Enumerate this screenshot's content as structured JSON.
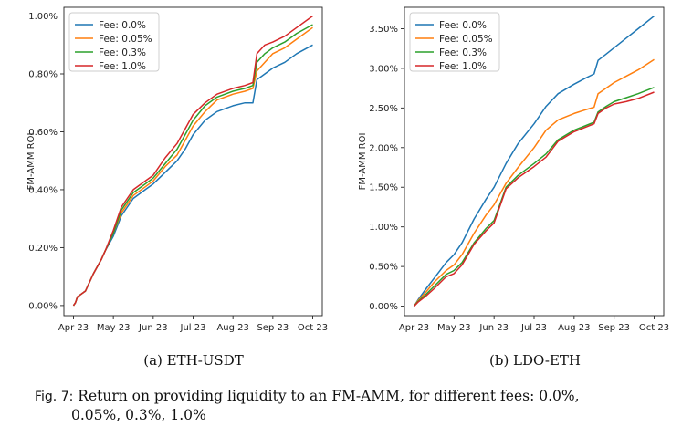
{
  "charts_meta": {
    "colors": [
      "#1f77b4",
      "#ff7f0e",
      "#2ca02c",
      "#d62728"
    ]
  },
  "chart_data": [
    {
      "type": "line",
      "caption": "(a) ETH-USDT",
      "ylabel": "FM-AMM ROI",
      "xticks": [
        "Apr 23",
        "May 23",
        "Jun 23",
        "Jul 23",
        "Aug 23",
        "Sep 23",
        "Oct 23"
      ],
      "yticks": [
        "0.00%",
        "0.20%",
        "0.40%",
        "0.60%",
        "0.80%",
        "1.00%"
      ],
      "ylim": [
        -0.00035,
        0.0103
      ],
      "xlim": [
        -0.24,
        6.24
      ],
      "legend_position": "upper left",
      "grid": false,
      "series": [
        {
          "name": "Fee: 0.0%",
          "x": [
            0,
            0.05,
            0.1,
            0.2,
            0.3,
            0.5,
            0.7,
            0.8,
            1.0,
            1.2,
            1.5,
            1.8,
            2.0,
            2.3,
            2.6,
            2.8,
            3.0,
            3.3,
            3.6,
            4.0,
            4.3,
            4.5,
            4.6,
            4.8,
            5.0,
            5.3,
            5.6,
            6.0
          ],
          "y": [
            0.0,
            0.0001,
            0.0003,
            0.0004,
            0.0005,
            0.0011,
            0.0016,
            0.0019,
            0.0024,
            0.0031,
            0.0037,
            0.004,
            0.0042,
            0.0046,
            0.005,
            0.0054,
            0.0059,
            0.0064,
            0.0067,
            0.0069,
            0.007,
            0.007,
            0.0078,
            0.008,
            0.0082,
            0.0084,
            0.0087,
            0.009
          ]
        },
        {
          "name": "Fee: 0.05%",
          "x": [
            0,
            0.05,
            0.1,
            0.2,
            0.3,
            0.5,
            0.7,
            0.8,
            1.0,
            1.2,
            1.5,
            1.8,
            2.0,
            2.3,
            2.6,
            2.8,
            3.0,
            3.3,
            3.6,
            4.0,
            4.3,
            4.5,
            4.6,
            4.8,
            5.0,
            5.3,
            5.6,
            6.0
          ],
          "y": [
            0.0,
            0.0001,
            0.0003,
            0.0004,
            0.0005,
            0.0011,
            0.0016,
            0.0019,
            0.0025,
            0.0032,
            0.0038,
            0.0041,
            0.0043,
            0.0048,
            0.0052,
            0.0057,
            0.0062,
            0.0067,
            0.0071,
            0.0073,
            0.0074,
            0.0075,
            0.0081,
            0.0084,
            0.0087,
            0.0089,
            0.0092,
            0.0096
          ]
        },
        {
          "name": "Fee: 0.3%",
          "x": [
            0,
            0.05,
            0.1,
            0.2,
            0.3,
            0.5,
            0.7,
            0.8,
            1.0,
            1.2,
            1.5,
            1.8,
            2.0,
            2.3,
            2.6,
            2.8,
            3.0,
            3.3,
            3.6,
            4.0,
            4.3,
            4.5,
            4.6,
            4.8,
            5.0,
            5.3,
            5.6,
            6.0
          ],
          "y": [
            0.0,
            0.0001,
            0.0003,
            0.0004,
            0.0005,
            0.0011,
            0.0016,
            0.0019,
            0.0025,
            0.0033,
            0.0039,
            0.0042,
            0.0044,
            0.0049,
            0.0054,
            0.0059,
            0.0064,
            0.0069,
            0.0072,
            0.0074,
            0.0075,
            0.0076,
            0.0084,
            0.0087,
            0.0089,
            0.0091,
            0.0094,
            0.0097
          ]
        },
        {
          "name": "Fee: 1.0%",
          "x": [
            0,
            0.05,
            0.1,
            0.2,
            0.3,
            0.5,
            0.7,
            0.8,
            1.0,
            1.2,
            1.5,
            1.8,
            2.0,
            2.3,
            2.6,
            2.8,
            3.0,
            3.3,
            3.6,
            4.0,
            4.3,
            4.5,
            4.6,
            4.8,
            5.0,
            5.3,
            5.6,
            6.0
          ],
          "y": [
            0.0,
            0.0001,
            0.0003,
            0.0004,
            0.0005,
            0.0011,
            0.0016,
            0.0019,
            0.0026,
            0.0034,
            0.004,
            0.0043,
            0.0045,
            0.0051,
            0.0056,
            0.0061,
            0.0066,
            0.007,
            0.0073,
            0.0075,
            0.0076,
            0.0077,
            0.0087,
            0.009,
            0.0091,
            0.0093,
            0.0096,
            0.01
          ]
        }
      ]
    },
    {
      "type": "line",
      "caption": "(b) LDO-ETH",
      "ylabel": "FM-AMM ROI",
      "xticks": [
        "Apr 23",
        "May 23",
        "Jun 23",
        "Jul 23",
        "Aug 23",
        "Sep 23",
        "Oct 23"
      ],
      "yticks": [
        "0.00%",
        "0.50%",
        "1.00%",
        "1.50%",
        "2.00%",
        "2.50%",
        "3.00%",
        "3.50%"
      ],
      "ylim": [
        -0.0012,
        0.0377
      ],
      "xlim": [
        -0.24,
        6.24
      ],
      "legend_position": "upper left",
      "grid": false,
      "series": [
        {
          "name": "Fee: 0.0%",
          "x": [
            0,
            0.1,
            0.3,
            0.5,
            0.8,
            1.0,
            1.2,
            1.5,
            1.8,
            2.0,
            2.3,
            2.6,
            3.0,
            3.3,
            3.6,
            4.0,
            4.3,
            4.5,
            4.6,
            4.8,
            5.0,
            5.3,
            5.6,
            6.0
          ],
          "y": [
            0.0,
            0.0008,
            0.0022,
            0.0035,
            0.0055,
            0.0065,
            0.008,
            0.011,
            0.0135,
            0.015,
            0.018,
            0.0205,
            0.023,
            0.0252,
            0.0268,
            0.028,
            0.0288,
            0.0293,
            0.031,
            0.0318,
            0.0326,
            0.0338,
            0.035,
            0.0366
          ]
        },
        {
          "name": "Fee: 0.05%",
          "x": [
            0,
            0.1,
            0.3,
            0.5,
            0.8,
            1.0,
            1.2,
            1.5,
            1.8,
            2.0,
            2.3,
            2.6,
            3.0,
            3.3,
            3.6,
            4.0,
            4.3,
            4.5,
            4.6,
            4.8,
            5.0,
            5.3,
            5.6,
            6.0
          ],
          "y": [
            0.0,
            0.0007,
            0.0018,
            0.003,
            0.0045,
            0.0052,
            0.0065,
            0.0092,
            0.0115,
            0.0128,
            0.0155,
            0.0175,
            0.02,
            0.0222,
            0.0235,
            0.0243,
            0.0248,
            0.0251,
            0.0268,
            0.0275,
            0.0282,
            0.029,
            0.0298,
            0.0311
          ]
        },
        {
          "name": "Fee: 0.3%",
          "x": [
            0,
            0.1,
            0.3,
            0.5,
            0.8,
            1.0,
            1.2,
            1.5,
            1.8,
            2.0,
            2.3,
            2.6,
            3.0,
            3.3,
            3.6,
            4.0,
            4.3,
            4.5,
            4.6,
            4.8,
            5.0,
            5.3,
            5.6,
            6.0
          ],
          "y": [
            0.0,
            0.0006,
            0.0015,
            0.0025,
            0.004,
            0.0045,
            0.0055,
            0.008,
            0.0098,
            0.0108,
            0.015,
            0.0165,
            0.018,
            0.0192,
            0.021,
            0.0222,
            0.0228,
            0.0232,
            0.0245,
            0.0252,
            0.0258,
            0.0263,
            0.0268,
            0.0276
          ]
        },
        {
          "name": "Fee: 1.0%",
          "x": [
            0,
            0.1,
            0.3,
            0.5,
            0.8,
            1.0,
            1.2,
            1.5,
            1.8,
            2.0,
            2.3,
            2.6,
            3.0,
            3.3,
            3.6,
            4.0,
            4.3,
            4.5,
            4.6,
            4.8,
            5.0,
            5.3,
            5.6,
            6.0
          ],
          "y": [
            0.0,
            0.0005,
            0.0013,
            0.0022,
            0.0037,
            0.0041,
            0.0052,
            0.0078,
            0.0095,
            0.0105,
            0.0148,
            0.0162,
            0.0176,
            0.0188,
            0.0208,
            0.022,
            0.0226,
            0.023,
            0.0243,
            0.025,
            0.0255,
            0.0258,
            0.0262,
            0.027
          ]
        }
      ]
    }
  ],
  "caption": {
    "label": "Fig. 7:",
    "line1": "Return on providing liquidity to an FM-AMM, for different fees: 0.0%,",
    "line2": "0.05%, 0.3%, 1.0%"
  }
}
